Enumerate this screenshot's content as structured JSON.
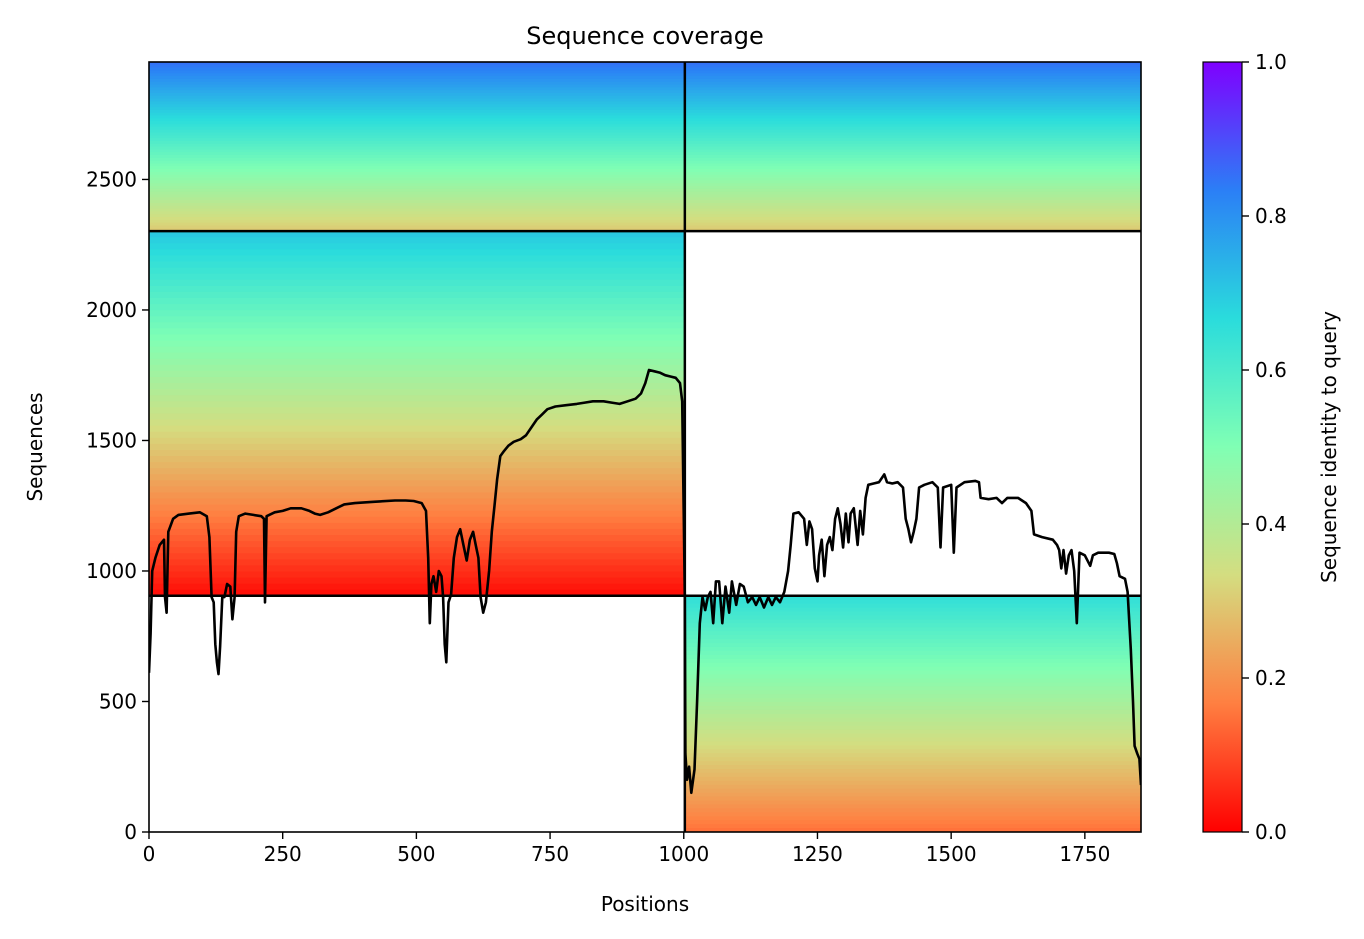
{
  "chart_data": {
    "type": "heatmap",
    "title": "Sequence coverage",
    "xlabel": "Positions",
    "ylabel": "Sequences",
    "xlim": [
      0,
      1855
    ],
    "ylim": [
      0,
      2950
    ],
    "xticks": [
      0,
      250,
      500,
      750,
      1000,
      1250,
      1500,
      1750
    ],
    "yticks": [
      0,
      500,
      1000,
      1500,
      2000,
      2500
    ],
    "grid": false,
    "colorbar": {
      "label": "Sequence identity to query",
      "range": [
        0,
        1
      ],
      "ticks": [
        0.0,
        0.2,
        0.4,
        0.6,
        0.8,
        1.0
      ],
      "colormap": "rainbow_r",
      "stops": [
        "#ff0000",
        "#ff7f41",
        "#d4dd80",
        "#80ffb4",
        "#2adcdc",
        "#2b7ff6",
        "#7f00ff"
      ]
    },
    "divider_lines": {
      "x": [
        1002
      ],
      "y": [
        905,
        2302
      ]
    },
    "blocks": [
      {
        "name": "top-left",
        "x": [
          0,
          1002
        ],
        "y": [
          2302,
          2950
        ],
        "identity_bottom": 0.3,
        "identity_top": 0.85
      },
      {
        "name": "top-right",
        "x": [
          1002,
          1855
        ],
        "y": [
          2302,
          2950
        ],
        "identity_bottom": 0.3,
        "identity_top": 0.85
      },
      {
        "name": "middle-left",
        "x": [
          0,
          1002
        ],
        "y": [
          905,
          2302
        ],
        "identity_bottom": 0.02,
        "identity_top": 0.7
      },
      {
        "name": "bottom-right",
        "x": [
          1002,
          1855
        ],
        "y": [
          0,
          905
        ],
        "identity_bottom": 0.15,
        "identity_top": 0.65
      }
    ],
    "coverage_line": {
      "color": "#000000",
      "points": [
        [
          0,
          610
        ],
        [
          3,
          760
        ],
        [
          6,
          1000
        ],
        [
          12,
          1050
        ],
        [
          20,
          1100
        ],
        [
          28,
          1120
        ],
        [
          30,
          900
        ],
        [
          33,
          840
        ],
        [
          36,
          1150
        ],
        [
          45,
          1200
        ],
        [
          55,
          1215
        ],
        [
          75,
          1220
        ],
        [
          95,
          1225
        ],
        [
          108,
          1210
        ],
        [
          113,
          1130
        ],
        [
          117,
          900
        ],
        [
          121,
          880
        ],
        [
          124,
          720
        ],
        [
          127,
          650
        ],
        [
          130,
          605
        ],
        [
          133,
          710
        ],
        [
          137,
          900
        ],
        [
          141,
          900
        ],
        [
          146,
          950
        ],
        [
          152,
          940
        ],
        [
          156,
          815
        ],
        [
          160,
          900
        ],
        [
          163,
          1150
        ],
        [
          168,
          1210
        ],
        [
          180,
          1220
        ],
        [
          195,
          1215
        ],
        [
          210,
          1210
        ],
        [
          215,
          1200
        ],
        [
          217,
          880
        ],
        [
          220,
          1210
        ],
        [
          235,
          1225
        ],
        [
          250,
          1230
        ],
        [
          265,
          1240
        ],
        [
          285,
          1240
        ],
        [
          300,
          1230
        ],
        [
          310,
          1220
        ],
        [
          320,
          1215
        ],
        [
          335,
          1225
        ],
        [
          350,
          1240
        ],
        [
          365,
          1255
        ],
        [
          385,
          1260
        ],
        [
          420,
          1265
        ],
        [
          460,
          1270
        ],
        [
          480,
          1270
        ],
        [
          495,
          1268
        ],
        [
          510,
          1260
        ],
        [
          518,
          1230
        ],
        [
          522,
          1050
        ],
        [
          525,
          800
        ],
        [
          528,
          950
        ],
        [
          532,
          980
        ],
        [
          537,
          920
        ],
        [
          542,
          1000
        ],
        [
          547,
          980
        ],
        [
          550,
          900
        ],
        [
          553,
          720
        ],
        [
          556,
          650
        ],
        [
          560,
          880
        ],
        [
          565,
          910
        ],
        [
          570,
          1050
        ],
        [
          576,
          1130
        ],
        [
          582,
          1160
        ],
        [
          588,
          1100
        ],
        [
          594,
          1040
        ],
        [
          600,
          1120
        ],
        [
          606,
          1150
        ],
        [
          611,
          1100
        ],
        [
          616,
          1050
        ],
        [
          620,
          900
        ],
        [
          625,
          840
        ],
        [
          630,
          880
        ],
        [
          636,
          1000
        ],
        [
          641,
          1150
        ],
        [
          646,
          1250
        ],
        [
          651,
          1350
        ],
        [
          657,
          1440
        ],
        [
          664,
          1460
        ],
        [
          672,
          1480
        ],
        [
          682,
          1495
        ],
        [
          695,
          1505
        ],
        [
          705,
          1520
        ],
        [
          715,
          1550
        ],
        [
          725,
          1580
        ],
        [
          735,
          1600
        ],
        [
          745,
          1620
        ],
        [
          760,
          1630
        ],
        [
          780,
          1635
        ],
        [
          800,
          1640
        ],
        [
          815,
          1645
        ],
        [
          830,
          1650
        ],
        [
          850,
          1650
        ],
        [
          865,
          1645
        ],
        [
          880,
          1640
        ],
        [
          895,
          1650
        ],
        [
          910,
          1660
        ],
        [
          920,
          1680
        ],
        [
          928,
          1720
        ],
        [
          935,
          1770
        ],
        [
          945,
          1765
        ],
        [
          955,
          1760
        ],
        [
          965,
          1750
        ],
        [
          975,
          1745
        ],
        [
          985,
          1740
        ],
        [
          993,
          1720
        ],
        [
          997,
          1650
        ],
        [
          1000,
          1200
        ],
        [
          1002,
          900
        ],
        [
          1003,
          300
        ],
        [
          1006,
          200
        ],
        [
          1010,
          250
        ],
        [
          1014,
          150
        ],
        [
          1020,
          240
        ],
        [
          1025,
          500
        ],
        [
          1030,
          800
        ],
        [
          1035,
          900
        ],
        [
          1040,
          850
        ],
        [
          1045,
          900
        ],
        [
          1050,
          920
        ],
        [
          1055,
          800
        ],
        [
          1060,
          960
        ],
        [
          1066,
          960
        ],
        [
          1072,
          800
        ],
        [
          1078,
          940
        ],
        [
          1085,
          840
        ],
        [
          1090,
          960
        ],
        [
          1098,
          870
        ],
        [
          1105,
          950
        ],
        [
          1112,
          940
        ],
        [
          1120,
          880
        ],
        [
          1128,
          900
        ],
        [
          1135,
          870
        ],
        [
          1142,
          900
        ],
        [
          1150,
          860
        ],
        [
          1158,
          900
        ],
        [
          1165,
          870
        ],
        [
          1172,
          900
        ],
        [
          1180,
          880
        ],
        [
          1188,
          920
        ],
        [
          1195,
          1000
        ],
        [
          1200,
          1100
        ],
        [
          1205,
          1220
        ],
        [
          1215,
          1225
        ],
        [
          1225,
          1200
        ],
        [
          1230,
          1100
        ],
        [
          1235,
          1190
        ],
        [
          1240,
          1160
        ],
        [
          1245,
          1010
        ],
        [
          1250,
          960
        ],
        [
          1253,
          1060
        ],
        [
          1258,
          1120
        ],
        [
          1263,
          980
        ],
        [
          1268,
          1100
        ],
        [
          1273,
          1130
        ],
        [
          1278,
          1080
        ],
        [
          1283,
          1200
        ],
        [
          1288,
          1240
        ],
        [
          1293,
          1180
        ],
        [
          1298,
          1090
        ],
        [
          1303,
          1220
        ],
        [
          1308,
          1110
        ],
        [
          1312,
          1220
        ],
        [
          1318,
          1240
        ],
        [
          1325,
          1100
        ],
        [
          1330,
          1230
        ],
        [
          1335,
          1140
        ],
        [
          1340,
          1280
        ],
        [
          1345,
          1330
        ],
        [
          1355,
          1335
        ],
        [
          1365,
          1340
        ],
        [
          1375,
          1370
        ],
        [
          1380,
          1340
        ],
        [
          1390,
          1335
        ],
        [
          1400,
          1340
        ],
        [
          1410,
          1320
        ],
        [
          1415,
          1200
        ],
        [
          1420,
          1160
        ],
        [
          1425,
          1110
        ],
        [
          1430,
          1150
        ],
        [
          1435,
          1200
        ],
        [
          1440,
          1320
        ],
        [
          1450,
          1330
        ],
        [
          1465,
          1340
        ],
        [
          1475,
          1320
        ],
        [
          1480,
          1090
        ],
        [
          1485,
          1320
        ],
        [
          1500,
          1330
        ],
        [
          1505,
          1070
        ],
        [
          1510,
          1320
        ],
        [
          1525,
          1340
        ],
        [
          1545,
          1345
        ],
        [
          1552,
          1340
        ],
        [
          1555,
          1280
        ],
        [
          1570,
          1275
        ],
        [
          1585,
          1280
        ],
        [
          1595,
          1260
        ],
        [
          1605,
          1280
        ],
        [
          1625,
          1280
        ],
        [
          1640,
          1260
        ],
        [
          1650,
          1230
        ],
        [
          1655,
          1140
        ],
        [
          1670,
          1130
        ],
        [
          1690,
          1120
        ],
        [
          1698,
          1100
        ],
        [
          1702,
          1080
        ],
        [
          1706,
          1010
        ],
        [
          1710,
          1080
        ],
        [
          1715,
          990
        ],
        [
          1720,
          1060
        ],
        [
          1725,
          1080
        ],
        [
          1730,
          1000
        ],
        [
          1735,
          800
        ],
        [
          1740,
          1070
        ],
        [
          1750,
          1060
        ],
        [
          1760,
          1020
        ],
        [
          1765,
          1060
        ],
        [
          1775,
          1070
        ],
        [
          1795,
          1070
        ],
        [
          1805,
          1065
        ],
        [
          1810,
          1030
        ],
        [
          1815,
          980
        ],
        [
          1825,
          970
        ],
        [
          1830,
          920
        ],
        [
          1836,
          700
        ],
        [
          1840,
          500
        ],
        [
          1843,
          330
        ],
        [
          1848,
          300
        ],
        [
          1852,
          280
        ],
        [
          1855,
          180
        ]
      ]
    }
  }
}
